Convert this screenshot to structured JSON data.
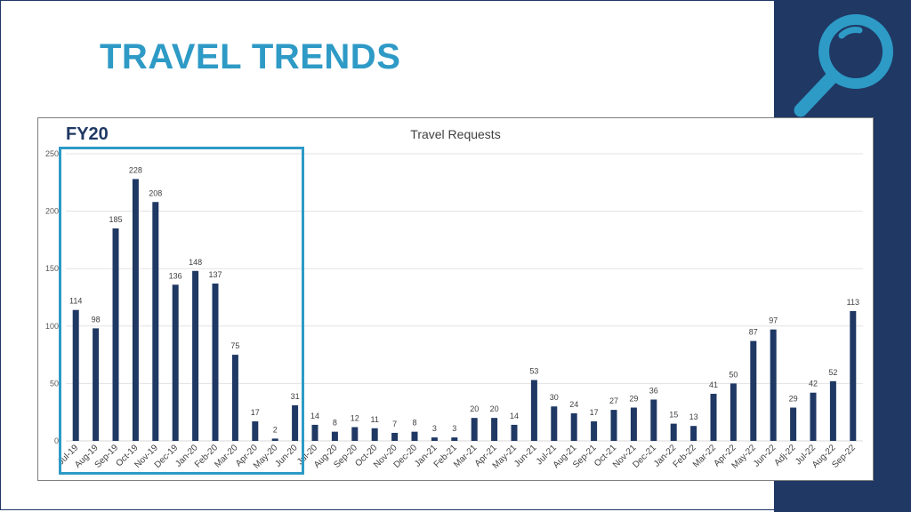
{
  "slide": {
    "title": "TRAVEL TRENDS",
    "accent_color": "#2e9ac6",
    "panel_color": "#1f3864",
    "icon": "magnifying-glass-icon"
  },
  "callout": {
    "label": "FY20"
  },
  "chart_data": {
    "type": "bar",
    "title": "Travel Requests",
    "xlabel": "",
    "ylabel": "",
    "ylim": [
      0,
      250
    ],
    "yticks": [
      0,
      50,
      100,
      150,
      200,
      250
    ],
    "grid": true,
    "bar_color": "#1f3864",
    "categories": [
      "Jul-19",
      "Aug-19",
      "Sep-19",
      "Oct-19",
      "Nov-19",
      "Dec-19",
      "Jan-20",
      "Feb-20",
      "Mar-20",
      "Apr-20",
      "May-20",
      "Jun-20",
      "Jul-20",
      "Aug-20",
      "Sep-20",
      "Oct-20",
      "Nov-20",
      "Dec-20",
      "Jan-21",
      "Feb-21",
      "Mar-21",
      "Apr-21",
      "May-21",
      "Jun-21",
      "Jul-21",
      "Aug-21",
      "Sep-21",
      "Oct-21",
      "Nov-21",
      "Dec-21",
      "Jan-22",
      "Feb-22",
      "Mar-22",
      "Apr-22",
      "May-22",
      "Jun-22",
      "Adj-22",
      "Jul-22",
      "Aug-22",
      "Sep-22"
    ],
    "values": [
      114,
      98,
      185,
      228,
      208,
      136,
      148,
      137,
      75,
      17,
      2,
      31,
      14,
      8,
      12,
      11,
      7,
      8,
      3,
      3,
      20,
      20,
      14,
      53,
      30,
      24,
      17,
      27,
      29,
      36,
      15,
      13,
      41,
      50,
      87,
      97,
      29,
      42,
      52,
      113
    ]
  }
}
